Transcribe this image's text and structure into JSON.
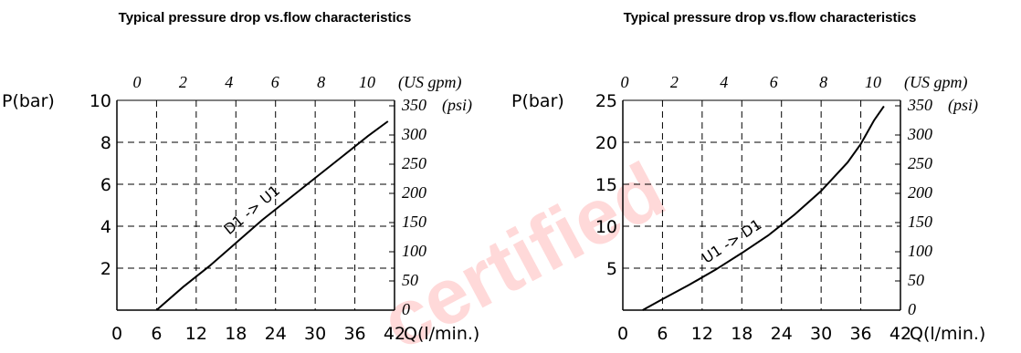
{
  "watermark": "certified",
  "chart_data": [
    {
      "type": "line",
      "title": "Typical pressure drop vs.flow characteristics",
      "xlabel": "Q(l/min.)",
      "ylabel": "P(bar)",
      "secondary_x_label": "(US gpm)",
      "secondary_y_label": "(psi)",
      "xlim": [
        0,
        42
      ],
      "ylim": [
        0,
        10
      ],
      "x_ticks": [
        "0",
        "6",
        "12",
        "18",
        "24",
        "30",
        "36",
        "42"
      ],
      "y_ticks": [
        "2",
        "4",
        "6",
        "8",
        "10"
      ],
      "x2_ticks": [
        "0",
        "2",
        "4",
        "6",
        "8",
        "10"
      ],
      "y2_ticks": [
        "0",
        "50",
        "100",
        "150",
        "200",
        "250",
        "300",
        "350"
      ],
      "grid": true,
      "series": [
        {
          "name": "D1 -> U1",
          "x": [
            6,
            10,
            14,
            18,
            22,
            26,
            30,
            34,
            38,
            41
          ],
          "y": [
            0,
            1.1,
            2.1,
            3.2,
            4.3,
            5.3,
            6.3,
            7.3,
            8.3,
            9.0
          ]
        }
      ]
    },
    {
      "type": "line",
      "title": "Typical pressure drop vs.flow characteristics",
      "xlabel": "Q(l/min.)",
      "ylabel": "P(bar)",
      "secondary_x_label": "(US gpm)",
      "secondary_y_label": "(psi)",
      "xlim": [
        0,
        42
      ],
      "ylim": [
        0,
        25
      ],
      "x_ticks": [
        "0",
        "6",
        "12",
        "18",
        "24",
        "30",
        "36",
        "42"
      ],
      "y_ticks": [
        "5",
        "10",
        "15",
        "20",
        "25"
      ],
      "x2_ticks": [
        "0",
        "2",
        "4",
        "6",
        "8",
        "10"
      ],
      "y2_ticks": [
        "0",
        "50",
        "100",
        "150",
        "200",
        "250",
        "300",
        "350"
      ],
      "grid": true,
      "series": [
        {
          "name": "U1 -> D1",
          "x": [
            3,
            6,
            10,
            14,
            18,
            22,
            26,
            30,
            34,
            36,
            38,
            39.5
          ],
          "y": [
            0,
            1.3,
            3.0,
            4.8,
            6.8,
            8.9,
            11.4,
            14.2,
            17.6,
            19.8,
            22.6,
            24.3
          ]
        }
      ]
    }
  ]
}
